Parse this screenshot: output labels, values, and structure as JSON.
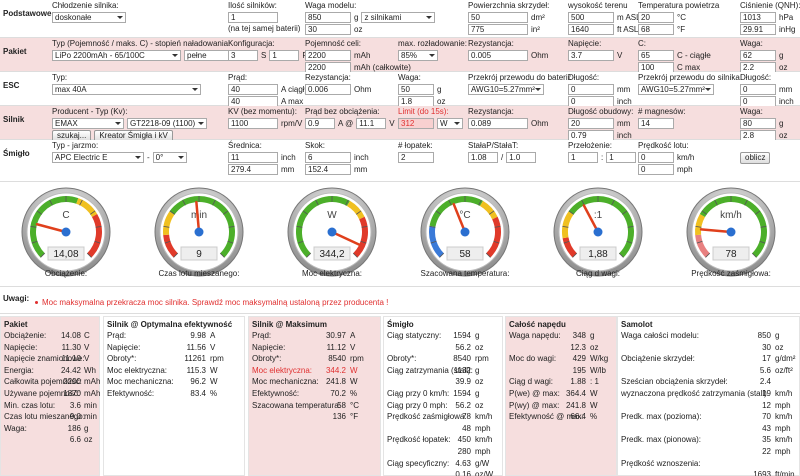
{
  "form": [
    {
      "label": "Podstawowe",
      "fields": [
        {
          "label": "Chłodzenie silnika:",
          "lines": [
            [
              {
                "select": "doskonałe"
              }
            ]
          ]
        },
        {
          "label": "Ilość silników:",
          "lines": [
            [
              {
                "input": "1"
              }
            ],
            [
              {
                "text": "(na tej samej baterii)"
              }
            ]
          ]
        },
        {
          "label": "Waga modelu:",
          "lines": [
            [
              {
                "input": "850"
              },
              {
                "text": "g"
              },
              {
                "select": "z silnikami"
              }
            ],
            [
              {
                "input": "30"
              },
              {
                "text": "oz"
              }
            ]
          ]
        },
        {
          "label": "Powierzchnia skrzydeł:",
          "lines": [
            [
              {
                "input": "50"
              },
              {
                "text": "dm²"
              }
            ],
            [
              {
                "input": "775"
              },
              {
                "text": "in²"
              }
            ]
          ]
        },
        {
          "label": "wysokość terenu",
          "lines": [
            [
              {
                "input": "500"
              },
              {
                "text": "m ASL"
              }
            ],
            [
              {
                "input": "1640"
              },
              {
                "text": "ft ASL"
              }
            ]
          ]
        },
        {
          "label": "Temperatura powietrza",
          "lines": [
            [
              {
                "input": "20"
              },
              {
                "text": "°C"
              }
            ],
            [
              {
                "input": "68"
              },
              {
                "text": "°F"
              }
            ]
          ]
        },
        {
          "label": "Ciśnienie (QNH):",
          "lines": [
            [
              {
                "input": "1013"
              },
              {
                "text": "hPa"
              }
            ],
            [
              {
                "input": "29.91"
              },
              {
                "text": "inHg"
              }
            ]
          ]
        }
      ]
    },
    {
      "label": "Pakiet",
      "fields": [
        {
          "label": "Typ (Pojemność / maks. C) - stopień naładowania:",
          "lines": [
            [
              {
                "select": "LiPo 2200mAh - 65/100C"
              },
              {
                "select": "pełne"
              }
            ]
          ]
        },
        {
          "label": "Konfiguracja:",
          "lines": [
            [
              {
                "input": "3"
              },
              {
                "text": "S"
              },
              {
                "input": "1"
              },
              {
                "text": "R"
              }
            ]
          ]
        },
        {
          "label": "Pojemność celi:",
          "lines": [
            [
              {
                "input": "2200"
              },
              {
                "text": "mAh"
              }
            ],
            [
              {
                "input": "2200"
              },
              {
                "text": "mAh (całkowite)"
              }
            ]
          ]
        },
        {
          "label": "max. rozładowanie:",
          "lines": [
            [
              {
                "select": "85%"
              }
            ]
          ]
        },
        {
          "label": "Rezystancja:",
          "lines": [
            [
              {
                "input": "0.005"
              },
              {
                "text": "Ohm"
              }
            ]
          ]
        },
        {
          "label": "Napięcie:",
          "lines": [
            [
              {
                "input": "3.7"
              },
              {
                "text": "V"
              }
            ]
          ]
        },
        {
          "label": "C:",
          "lines": [
            [
              {
                "input": "65"
              },
              {
                "text": "C - ciągłe"
              }
            ],
            [
              {
                "input": "100"
              },
              {
                "text": "C max"
              }
            ]
          ]
        },
        {
          "label": "Waga:",
          "lines": [
            [
              {
                "input": "62"
              },
              {
                "text": "g"
              }
            ],
            [
              {
                "input": "2.2"
              },
              {
                "text": "oz"
              }
            ]
          ]
        }
      ]
    },
    {
      "label": "ESC",
      "fields": [
        {
          "label": "Typ:",
          "lines": [
            [
              {
                "select": "max 40A"
              }
            ]
          ]
        },
        {
          "label": "Prąd:",
          "lines": [
            [
              {
                "input": "40"
              },
              {
                "text": "A ciągły"
              }
            ],
            [
              {
                "input": "40"
              },
              {
                "text": "A max"
              }
            ]
          ]
        },
        {
          "label": "Rezystancja:",
          "lines": [
            [
              {
                "input": "0.006"
              },
              {
                "text": "Ohm"
              }
            ]
          ]
        },
        {
          "label": "Waga:",
          "lines": [
            [
              {
                "input": "50"
              },
              {
                "text": "g"
              }
            ],
            [
              {
                "input": "1.8"
              },
              {
                "text": "oz"
              }
            ]
          ]
        },
        {
          "label": "Przekrój przewodu do baterii:",
          "lines": [
            [
              {
                "select": "AWG10=5.27mm²"
              }
            ]
          ]
        },
        {
          "label": "Długość:",
          "lines": [
            [
              {
                "input": "0"
              },
              {
                "text": "mm"
              }
            ],
            [
              {
                "input": "0"
              },
              {
                "text": "inch"
              }
            ]
          ]
        },
        {
          "label": "Przekrój przewodu do silnika:",
          "lines": [
            [
              {
                "select": "AWG10=5.27mm²"
              }
            ]
          ]
        },
        {
          "label": "Długość:",
          "lines": [
            [
              {
                "input": "0"
              },
              {
                "text": "mm"
              }
            ],
            [
              {
                "input": "0"
              },
              {
                "text": "inch"
              }
            ]
          ]
        }
      ]
    },
    {
      "label": "Silnik",
      "fields": [
        {
          "label": "Producent - Typ (Kv):",
          "lines": [
            [
              {
                "select": "EMAX"
              },
              {
                "select": "GT2218-09 (1100)"
              }
            ],
            [
              {
                "button": "szukaj..."
              },
              {
                "button": "Kreator Śmigła i kV"
              }
            ]
          ]
        },
        {
          "label": "KV (bez momentu):",
          "lines": [
            [
              {
                "input": "1100"
              },
              {
                "text": "rpm/V"
              }
            ]
          ]
        },
        {
          "label": "Prąd bez obciążenia:",
          "lines": [
            [
              {
                "input": "0.9"
              },
              {
                "text": "A @"
              },
              {
                "input": "11.1"
              },
              {
                "text": "V"
              }
            ]
          ]
        },
        {
          "label": "Limit (do 15s):",
          "color": "#e03030",
          "lines": [
            [
              {
                "input": "312"
              },
              {
                "select": "W"
              }
            ]
          ]
        },
        {
          "label": "Rezystancja:",
          "lines": [
            [
              {
                "input": "0.089"
              },
              {
                "text": "Ohm"
              }
            ]
          ]
        },
        {
          "label": "Długość obudowy:",
          "lines": [
            [
              {
                "input": "20"
              },
              {
                "text": "mm"
              }
            ],
            [
              {
                "input": "0.79"
              },
              {
                "text": "inch"
              }
            ]
          ]
        },
        {
          "label": "# magnesów:",
          "lines": [
            [
              {
                "input": "14"
              }
            ]
          ]
        },
        {
          "label": "Waga:",
          "lines": [
            [
              {
                "input": "80"
              },
              {
                "text": "g"
              }
            ],
            [
              {
                "input": "2.8"
              },
              {
                "text": "oz"
              }
            ]
          ]
        }
      ]
    },
    {
      "label": "Śmigło",
      "fields": [
        {
          "label": "Typ - jarzmo:",
          "lines": [
            [
              {
                "select": "APC Electric E"
              },
              {
                "text": "-"
              },
              {
                "select": "0°"
              }
            ]
          ]
        },
        {
          "label": "Średnica:",
          "lines": [
            [
              {
                "input": "11"
              },
              {
                "text": "inch"
              }
            ],
            [
              {
                "input": "279.4"
              },
              {
                "text": "mm"
              }
            ]
          ]
        },
        {
          "label": "Skok:",
          "lines": [
            [
              {
                "input": "6"
              },
              {
                "text": "inch"
              }
            ],
            [
              {
                "input": "152.4"
              },
              {
                "text": "mm"
              }
            ]
          ]
        },
        {
          "label": "# łopatek:",
          "lines": [
            [
              {
                "input": "2"
              }
            ]
          ]
        },
        {
          "label": "StałaP/StałaT:",
          "lines": [
            [
              {
                "input": "1.08"
              },
              {
                "text": "/"
              },
              {
                "input": "1.0"
              }
            ]
          ]
        },
        {
          "label": "Przełożenie:",
          "lines": [
            [
              {
                "input": "1"
              },
              {
                "text": ":"
              },
              {
                "input": "1"
              }
            ]
          ]
        },
        {
          "label": "Prędkość lotu:",
          "lines": [
            [
              {
                "input": "0"
              },
              {
                "text": "km/h"
              }
            ],
            [
              {
                "input": "0"
              },
              {
                "text": "mph"
              }
            ]
          ]
        },
        {
          "lines": [
            [
              {
                "button": "oblicz"
              }
            ]
          ]
        }
      ]
    }
  ],
  "gauges": [
    {
      "label": "Obciążenie:",
      "value": "14,08",
      "unit": "C"
    },
    {
      "label": "Czas lotu mieszanego:",
      "value": "9",
      "unit": "min"
    },
    {
      "label": "Moc elektryczna:",
      "value": "344,2",
      "unit": "W"
    },
    {
      "label": "Szacowana temperatura:",
      "value": "58",
      "unit": "°C"
    },
    {
      "label": "Ciąg d wagi:",
      "value": "1,88",
      "unit": ":1"
    },
    {
      "label": "Prędkość zaśmigłowa:",
      "value": "78",
      "unit": "km/h"
    }
  ],
  "notes": {
    "title": "Uwagi:",
    "items": [
      "Moc maksymalna przekracza moc silnika. Sprawdź moc maksymalną ustaloną przez producenta !"
    ]
  },
  "results": [
    {
      "title": "Pakiet",
      "rows": [
        {
          "label": "Obciążenie:",
          "value": "14.08",
          "unit": "C"
        },
        {
          "label": "Napięcie:",
          "value": "11.30",
          "unit": "V"
        },
        {
          "label": "Napięcie znamionowe:",
          "value": "11.10",
          "unit": "V"
        },
        {
          "label": "Energia:",
          "value": "24.42",
          "unit": "Wh"
        },
        {
          "label": "Całkowita pojemność:",
          "value": "2200",
          "unit": "mAh"
        },
        {
          "label": "Używane pojemność:",
          "value": "1870",
          "unit": "mAh"
        },
        {
          "label": "Min. czas lotu:",
          "value": "3.6",
          "unit": "min"
        },
        {
          "label": "Czas lotu mieszanego:",
          "value": "9.0",
          "unit": "min"
        },
        {
          "label": "Waga:",
          "value": "186",
          "unit": "g"
        },
        {
          "value": "6.6",
          "unit": "oz"
        }
      ]
    },
    {
      "title": "Silnik @ Optymalna efektywność",
      "rows": [
        {
          "label": "Prąd:",
          "value": "9.98",
          "unit": "A"
        },
        {
          "label": "Napięcie:",
          "value": "11.56",
          "unit": "V"
        },
        {
          "label": "Obroty*:",
          "value": "11261",
          "unit": "rpm"
        },
        {
          "label": "Moc elektryczna:",
          "value": "115.3",
          "unit": "W"
        },
        {
          "label": "Moc mechaniczna:",
          "value": "96.2",
          "unit": "W"
        },
        {
          "label": "Efektywność:",
          "value": "83.4",
          "unit": "%"
        }
      ]
    },
    {
      "title": "Silnik @ Maksimum",
      "rows": [
        {
          "label": "Prąd:",
          "value": "30.97",
          "unit": "A"
        },
        {
          "label": "Napięcie:",
          "value": "11.12",
          "unit": "V"
        },
        {
          "label": "Obroty*:",
          "value": "8540",
          "unit": "rpm"
        },
        {
          "label": "Moc elektryczna:",
          "value": "344.2",
          "unit": "W",
          "color": "#e03030"
        },
        {
          "label": "Moc mechaniczna:",
          "value": "241.8",
          "unit": "W"
        },
        {
          "label": "Efektywność:",
          "value": "70.2",
          "unit": "%"
        },
        {
          "label": "Szacowana temperatura:",
          "value": "58",
          "unit": "°C"
        },
        {
          "value": "136",
          "unit": "°F"
        }
      ]
    },
    {
      "title": "Śmigło",
      "rows": [
        {
          "label": "Ciąg statyczny:",
          "value": "1594",
          "unit": "g"
        },
        {
          "value": "56.2",
          "unit": "oz"
        },
        {
          "label": "Obroty*:",
          "value": "8540",
          "unit": "rpm"
        },
        {
          "label": "Ciąg zatrzymania (stall):",
          "value": "1132",
          "unit": "g"
        },
        {
          "value": "39.9",
          "unit": "oz"
        },
        {
          "label": "Ciąg przy 0 km/h:",
          "value": "1594",
          "unit": "g"
        },
        {
          "label": "Ciąg przy 0 mph:",
          "value": "56.2",
          "unit": "oz"
        },
        {
          "label": "Prędkość zaśmigłowa:",
          "value": "78",
          "unit": "km/h"
        },
        {
          "value": "48",
          "unit": "mph"
        },
        {
          "label": "Prędkość łopatek:",
          "value": "450",
          "unit": "km/h"
        },
        {
          "value": "280",
          "unit": "mph"
        },
        {
          "label": "Ciąg specyficzny:",
          "value": "4.63",
          "unit": "g/W"
        },
        {
          "value": "0.16",
          "unit": "oz/W"
        }
      ]
    },
    {
      "title": "Całość napędu",
      "rows": [
        {
          "label": "Waga napędu:",
          "value": "348",
          "unit": "g"
        },
        {
          "value": "12.3",
          "unit": "oz"
        },
        {
          "label": "Moc do wagi:",
          "value": "429",
          "unit": "W/kg"
        },
        {
          "value": "195",
          "unit": "W/lb"
        },
        {
          "label": "Ciąg d wagi:",
          "value": "1.88",
          "unit": ": 1"
        },
        {
          "label": "P(we) @ max:",
          "value": "364.4",
          "unit": "W"
        },
        {
          "label": "P(wy) @ max:",
          "value": "241.8",
          "unit": "W"
        },
        {
          "label": "Efektywność @ max:",
          "value": "66.4",
          "unit": "%"
        }
      ]
    },
    {
      "title": "Samolot",
      "rows": [
        {
          "label": "Waga całości modelu:",
          "value": "850",
          "unit": "g"
        },
        {
          "value": "30",
          "unit": "oz"
        },
        {
          "label": "Obciążenie skrzydeł:",
          "value": "17",
          "unit": "g/dm²"
        },
        {
          "value": "5.6",
          "unit": "oz/ft²"
        },
        {
          "label": "Sześcian obciążenia skrzydeł:",
          "value": "2.4"
        },
        {
          "label": "wyznaczona prędkość zatrzymania (stall)",
          "value": "19",
          "unit": "km/h"
        },
        {
          "value": "12",
          "unit": "mph"
        },
        {
          "label": "Predk. max (pozioma):",
          "value": "70",
          "unit": "km/h"
        },
        {
          "value": "43",
          "unit": "mph"
        },
        {
          "label": "Predk. max (pionowa):",
          "value": "35",
          "unit": "km/h"
        },
        {
          "value": "22",
          "unit": "mph"
        },
        {
          "label": "Prędkość wznoszenia:"
        },
        {
          "value": "1693",
          "unit": "ft/min"
        }
      ]
    }
  ]
}
